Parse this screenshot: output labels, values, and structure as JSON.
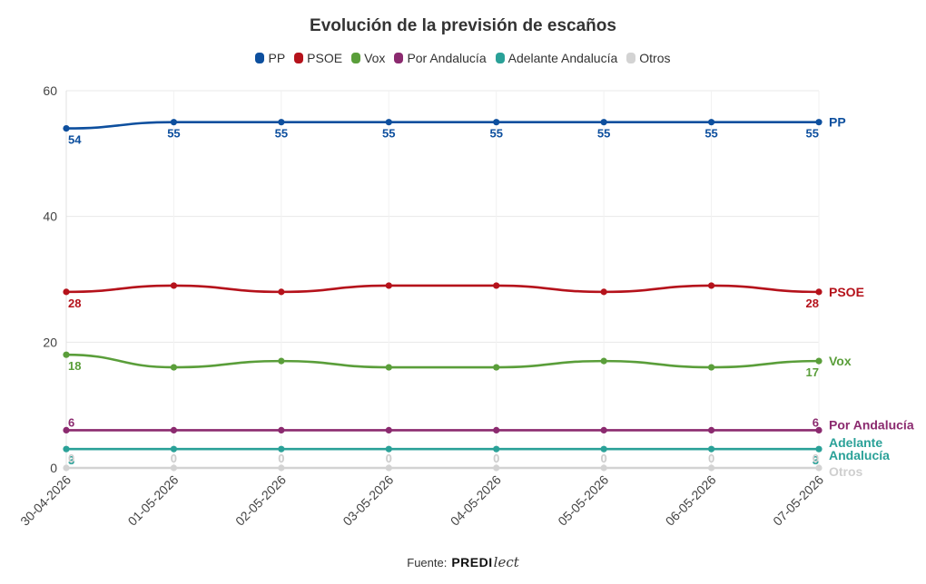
{
  "chart_data": {
    "type": "line",
    "title": "Evolución de la previsión de escaños",
    "x": [
      "30-04-2026",
      "01-05-2026",
      "02-05-2026",
      "03-05-2026",
      "04-05-2026",
      "05-05-2026",
      "06-05-2026",
      "07-05-2026"
    ],
    "ylim": [
      0,
      60
    ],
    "yticks": [
      0,
      20,
      40,
      60
    ],
    "grid": true,
    "legend_placement": "top-center",
    "series": [
      {
        "name": "PP",
        "color": "#0d4f9e",
        "values": [
          54,
          55,
          55,
          55,
          55,
          55,
          55,
          55
        ],
        "end_label": [
          "PP"
        ]
      },
      {
        "name": "PSOE",
        "color": "#b5121b",
        "values": [
          28,
          29,
          28,
          29,
          29,
          28,
          29,
          28
        ],
        "end_label": [
          "PSOE"
        ]
      },
      {
        "name": "Vox",
        "color": "#5a9e3a",
        "values": [
          18,
          16,
          17,
          16,
          16,
          17,
          16,
          17
        ],
        "end_label": [
          "Vox"
        ]
      },
      {
        "name": "Por Andalucía",
        "color": "#8b2a6f",
        "values": [
          6,
          6,
          6,
          6,
          6,
          6,
          6,
          6
        ],
        "end_label": [
          "Por Andalucía"
        ]
      },
      {
        "name": "Adelante Andalucía",
        "color": "#2aa198",
        "values": [
          3,
          3,
          3,
          3,
          3,
          3,
          3,
          3
        ],
        "end_label": [
          "Adelante",
          "Andalucía"
        ]
      },
      {
        "name": "Otros",
        "color": "#d3d3d3",
        "values": [
          0,
          0,
          0,
          0,
          0,
          0,
          0,
          0
        ],
        "end_label": [
          "Otros"
        ]
      }
    ]
  },
  "footer": {
    "source_label": "Fuente:",
    "brand_bold": "PREDI",
    "brand_script": "lect"
  }
}
